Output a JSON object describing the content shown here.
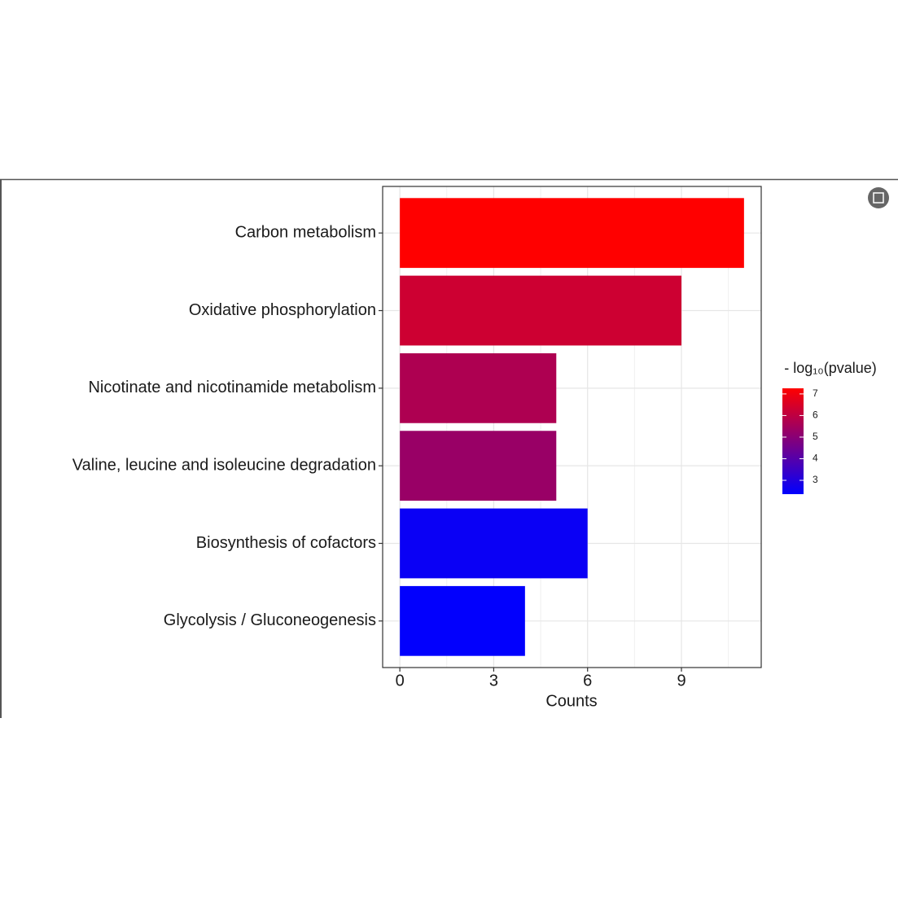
{
  "chart_data": {
    "type": "bar",
    "orientation": "horizontal",
    "categories": [
      "Carbon metabolism",
      "Oxidative phosphorylation",
      "Nicotinate and nicotinamide metabolism",
      "Valine, leucine and isoleucine degradation",
      "Biosynthesis of cofactors",
      "Glycolysis / Gluconeogenesis"
    ],
    "values": [
      11,
      9,
      5,
      5,
      6,
      4
    ],
    "color_values": [
      7.26,
      6.3,
      5.7,
      5.3,
      2.55,
      2.4
    ],
    "x_label": "Counts",
    "xlim": [
      -0.55,
      11.55
    ],
    "xticks": [
      0,
      3,
      6,
      9
    ],
    "x_minor_ticks": [
      1.5,
      4.5,
      7.5,
      10.5
    ],
    "grid": true,
    "colorbar": {
      "title": "- log₁₀(pvalue)",
      "lim": [
        2.36,
        7.26
      ],
      "ticks": [
        3,
        4,
        5,
        6,
        7
      ],
      "low": "#0000ff",
      "high": "#ff0000"
    }
  }
}
